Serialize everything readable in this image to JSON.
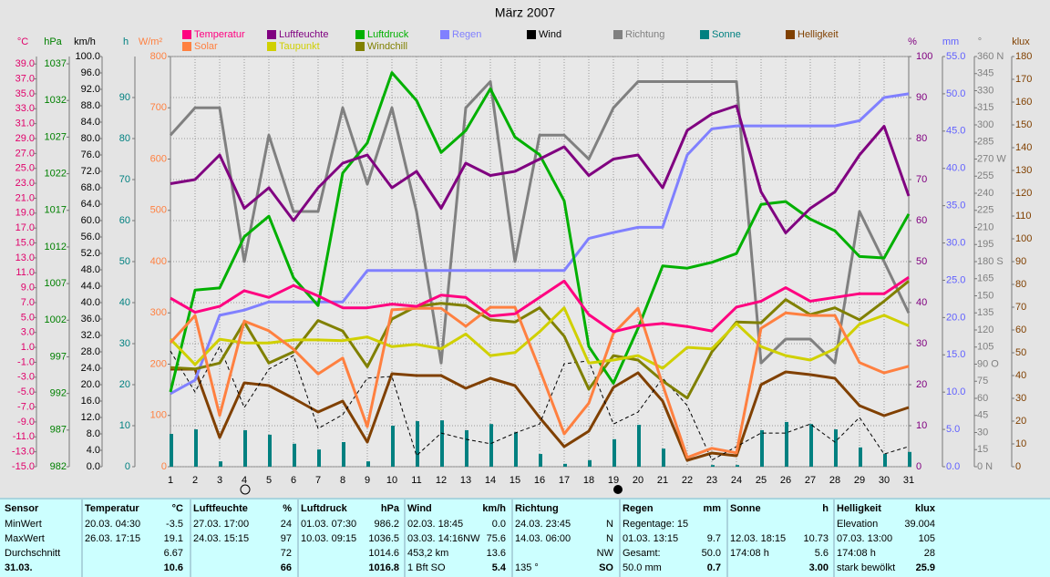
{
  "chart_data": {
    "type": "line",
    "title": "März 2007",
    "categories": [
      "1",
      "2",
      "3",
      "4",
      "5",
      "6",
      "7",
      "8",
      "9",
      "10",
      "11",
      "12",
      "13",
      "14",
      "15",
      "16",
      "17",
      "18",
      "19",
      "20",
      "21",
      "22",
      "23",
      "24",
      "25",
      "26",
      "27",
      "28",
      "29",
      "30",
      "31"
    ],
    "grid": true,
    "axes": [
      {
        "label": "°C",
        "side": "left",
        "color": "#e0006a",
        "lim": [
          -15,
          40
        ],
        "ticks": [
          {
            "value": -15,
            "label": "-15.0"
          },
          {
            "value": -13,
            "label": "-13.0"
          },
          {
            "value": -11,
            "label": "-11.0"
          },
          {
            "value": -9,
            "label": "-9.0"
          },
          {
            "value": -7,
            "label": "-7.0"
          },
          {
            "value": -5,
            "label": "-5.0"
          },
          {
            "value": -3,
            "label": "-3.0"
          },
          {
            "value": -1,
            "label": "-1.0"
          },
          {
            "value": 1,
            "label": "1.0"
          },
          {
            "value": 3,
            "label": "3.0"
          },
          {
            "value": 5,
            "label": "5.0"
          },
          {
            "value": 7,
            "label": "7.0"
          },
          {
            "value": 9,
            "label": "9.0"
          },
          {
            "value": 11,
            "label": "11.0"
          },
          {
            "value": 13,
            "label": "13.0"
          },
          {
            "value": 15,
            "label": "15.0"
          },
          {
            "value": 17,
            "label": "17.0"
          },
          {
            "value": 19,
            "label": "19.0"
          },
          {
            "value": 21,
            "label": "21.0"
          },
          {
            "value": 23,
            "label": "23.0"
          },
          {
            "value": 25,
            "label": "25.0"
          },
          {
            "value": 27,
            "label": "27.0"
          },
          {
            "value": 29,
            "label": "29.0"
          },
          {
            "value": 31,
            "label": "31.0"
          },
          {
            "value": 33,
            "label": "33.0"
          },
          {
            "value": 35,
            "label": "35.0"
          },
          {
            "value": 37,
            "label": "37.0"
          },
          {
            "value": 39,
            "label": "39.0"
          }
        ]
      },
      {
        "label": "hPa",
        "side": "left",
        "color": "#008000",
        "lim": [
          982,
          1038
        ],
        "ticks": [
          982,
          987,
          992,
          997,
          1002,
          1007,
          1012,
          1017,
          1022,
          1027,
          1032,
          1037
        ]
      },
      {
        "label": "km/h",
        "side": "left",
        "color": "#000000",
        "lim": [
          0,
          100
        ],
        "ticks": [
          {
            "value": 0,
            "label": "0.0"
          },
          {
            "value": 4,
            "label": "4.0"
          },
          {
            "value": 8,
            "label": "8.0"
          },
          {
            "value": 12,
            "label": "12.0"
          },
          {
            "value": 16,
            "label": "16.0"
          },
          {
            "value": 20,
            "label": "20.0"
          },
          {
            "value": 24,
            "label": "24.0"
          },
          {
            "value": 28,
            "label": "28.0"
          },
          {
            "value": 32,
            "label": "32.0"
          },
          {
            "value": 36,
            "label": "36.0"
          },
          {
            "value": 40,
            "label": "40.0"
          },
          {
            "value": 44,
            "label": "44.0"
          },
          {
            "value": 48,
            "label": "48.0"
          },
          {
            "value": 52,
            "label": "52.0"
          },
          {
            "value": 56,
            "label": "56.0"
          },
          {
            "value": 60,
            "label": "60.0"
          },
          {
            "value": 64,
            "label": "64.0"
          },
          {
            "value": 68,
            "label": "68.0"
          },
          {
            "value": 72,
            "label": "72.0"
          },
          {
            "value": 76,
            "label": "76.0"
          },
          {
            "value": 80,
            "label": "80.0"
          },
          {
            "value": 84,
            "label": "84.0"
          },
          {
            "value": 88,
            "label": "88.0"
          },
          {
            "value": 92,
            "label": "92.0"
          },
          {
            "value": 96,
            "label": "96.0"
          },
          {
            "value": 100,
            "label": "100.0"
          }
        ]
      },
      {
        "label": "h",
        "side": "left",
        "color": "#008080",
        "lim": [
          0,
          100
        ],
        "ticks": [
          0,
          10,
          20,
          30,
          40,
          50,
          60,
          70,
          80,
          90
        ]
      },
      {
        "label": "W/m²",
        "side": "left",
        "color": "#ff8040",
        "lim": [
          0,
          800
        ],
        "ticks": [
          0,
          100,
          200,
          300,
          400,
          500,
          600,
          700,
          800
        ]
      },
      {
        "label": "%",
        "side": "right",
        "color": "#800080",
        "lim": [
          0,
          100
        ],
        "ticks": [
          0,
          10,
          20,
          30,
          40,
          50,
          60,
          70,
          80,
          90,
          100
        ]
      },
      {
        "label": "mm",
        "side": "right",
        "color": "#6060ff",
        "lim": [
          0,
          55
        ],
        "ticks": [
          {
            "value": 0,
            "label": "0.0"
          },
          {
            "value": 5,
            "label": "5.0"
          },
          {
            "value": 10,
            "label": "10.0"
          },
          {
            "value": 15,
            "label": "15.0"
          },
          {
            "value": 20,
            "label": "20.0"
          },
          {
            "value": 25,
            "label": "25.0"
          },
          {
            "value": 30,
            "label": "30.0"
          },
          {
            "value": 35,
            "label": "35.0"
          },
          {
            "value": 40,
            "label": "40.0"
          },
          {
            "value": 45,
            "label": "45.0"
          },
          {
            "value": 50,
            "label": "50.0"
          },
          {
            "value": 55,
            "label": "55.0"
          }
        ]
      },
      {
        "label": "°",
        "side": "right",
        "color": "#808080",
        "lim": [
          0,
          360
        ],
        "ticks": [
          {
            "value": 0,
            "label": "0 N"
          },
          15,
          30,
          45,
          60,
          75,
          {
            "value": 90,
            "label": "90 O"
          },
          105,
          120,
          135,
          150,
          165,
          {
            "value": 180,
            "label": "180 S"
          },
          195,
          210,
          225,
          240,
          255,
          {
            "value": 270,
            "label": "270 W"
          },
          285,
          300,
          315,
          330,
          345,
          {
            "value": 360,
            "label": "360 N"
          }
        ]
      },
      {
        "label": "klux",
        "side": "right",
        "color": "#804000",
        "lim": [
          0,
          180
        ],
        "ticks": [
          0,
          10,
          20,
          30,
          40,
          50,
          60,
          70,
          80,
          90,
          100,
          110,
          120,
          130,
          140,
          150,
          160,
          170,
          180
        ]
      }
    ],
    "series": [
      {
        "name": "Temperatur",
        "color": "#ff0080",
        "axis": "°C",
        "values": [
          7.6,
          5.7,
          6.5,
          8.6,
          7.7,
          9.3,
          7.9,
          6.3,
          6.3,
          6.8,
          6.5,
          8.0,
          7.7,
          5.2,
          5.5,
          7.7,
          9.9,
          5.4,
          3.1,
          3.9,
          4.2,
          3.8,
          3.2,
          6.4,
          7.2,
          9.0,
          7.2,
          7.7,
          8.2,
          8.2,
          10.4
        ]
      },
      {
        "name": "Solar",
        "color": "#ff8040",
        "axis": "W/m²",
        "values": [
          242,
          295,
          100,
          284,
          265,
          229,
          181,
          212,
          78,
          306,
          309,
          309,
          274,
          311,
          311,
          190,
          64,
          124,
          260,
          309,
          160,
          18,
          36,
          27,
          270,
          300,
          295,
          295,
          203,
          183,
          196
        ]
      },
      {
        "name": "Luftfeuchte",
        "color": "#800080",
        "axis": "%",
        "values": [
          69,
          70,
          76,
          63,
          68,
          60,
          68,
          74,
          76,
          68,
          72,
          63,
          74,
          71,
          72,
          75,
          78,
          71,
          75,
          76,
          68,
          82,
          86,
          88,
          67,
          57,
          63,
          67,
          76,
          83,
          66
        ]
      },
      {
        "name": "Taupunkt",
        "color": "#d0d000",
        "axis": "°C",
        "values": [
          2.1,
          -1.3,
          2.1,
          1.6,
          1.6,
          2.0,
          2.0,
          1.9,
          2.4,
          1.1,
          1.4,
          0.8,
          2.8,
          -0.1,
          0.3,
          3.1,
          6.3,
          -1.1,
          -0.7,
          -0.1,
          -1.8,
          1.0,
          0.8,
          4.2,
          1.1,
          -0.1,
          -0.7,
          0.8,
          4.1,
          5.3,
          3.9
        ]
      },
      {
        "name": "Luftdruck",
        "color": "#00b000",
        "axis": "hPa",
        "values": [
          992.2,
          1006.1,
          1006.4,
          1013.4,
          1016.2,
          1007.8,
          1004.0,
          1022.1,
          1026.2,
          1035.8,
          1032.0,
          1024.9,
          1027.9,
          1033.6,
          1027.0,
          1024.6,
          1018.3,
          998.4,
          993.4,
          1000.9,
          1009.4,
          1009.1,
          1009.9,
          1011.1,
          1017.8,
          1018.2,
          1015.8,
          1014.2,
          1010.7,
          1010.5,
          1016.5
        ]
      },
      {
        "name": "Windchill",
        "color": "#808000",
        "axis": "°C",
        "values": [
          -1.7,
          -1.9,
          -1.1,
          4.4,
          -1.1,
          0.4,
          4.6,
          3.2,
          -1.6,
          4.8,
          6.5,
          6.9,
          6.6,
          4.7,
          4.4,
          6.3,
          2.5,
          -4.6,
          -0.1,
          -0.7,
          -3.5,
          -5.8,
          0.4,
          4.4,
          4.3,
          7.4,
          5.4,
          6.3,
          4.7,
          7.2,
          9.9
        ]
      },
      {
        "name": "Regen",
        "color": "#8080ff",
        "axis": "mm",
        "values": [
          9.8,
          11.6,
          20.3,
          21.0,
          22.1,
          22.1,
          22.1,
          22.1,
          26.3,
          26.3,
          26.3,
          26.3,
          26.3,
          26.3,
          26.3,
          26.3,
          26.3,
          30.6,
          31.4,
          32.1,
          32.1,
          41.8,
          45.3,
          45.7,
          45.7,
          45.7,
          45.7,
          45.7,
          46.4,
          49.5,
          50.0
        ]
      },
      {
        "name": "Wind",
        "color": "#000000",
        "axis": "km/h",
        "dashed": true,
        "values": [
          28.2,
          18.2,
          29.3,
          14.4,
          23.8,
          27.1,
          9.3,
          12.7,
          21.6,
          22.0,
          2.7,
          8.2,
          6.7,
          5.6,
          8.2,
          10.4,
          25.1,
          25.8,
          10.4,
          13.3,
          21.6,
          14.9,
          1.6,
          4.9,
          8.2,
          8.2,
          10.4,
          6.0,
          12.0,
          3.1,
          4.9
        ]
      },
      {
        "name": "Richtung",
        "color": "#808080",
        "axis": "°",
        "values": [
          291,
          315,
          315,
          180,
          291,
          224,
          224,
          315,
          248,
          315,
          224,
          91,
          315,
          338,
          180,
          291,
          291,
          270,
          315,
          338,
          338,
          338,
          338,
          338,
          91,
          112,
          112,
          91,
          224,
          180,
          135
        ]
      },
      {
        "name": "Sonne",
        "color": "#008080",
        "axis": "h",
        "mark": "bar",
        "values": [
          8.0,
          9.1,
          1.3,
          8.9,
          7.8,
          5.6,
          4.2,
          6.0,
          1.3,
          10.0,
          11.1,
          11.3,
          8.9,
          10.4,
          8.4,
          3.1,
          0.7,
          1.6,
          6.7,
          10.2,
          4.4,
          0,
          0.4,
          0.4,
          8.9,
          10.9,
          10.4,
          9.1,
          4.7,
          3.1,
          3.6
        ]
      },
      {
        "name": "Helligkeit",
        "color": "#804000",
        "axis": "klux",
        "values": [
          42.8,
          42.8,
          12.8,
          36.8,
          35.6,
          30.0,
          24.0,
          28.8,
          10.8,
          40.8,
          40.0,
          40.0,
          34.4,
          38.8,
          35.6,
          21.6,
          8.8,
          15.6,
          34.8,
          41.2,
          28.8,
          2.8,
          6.0,
          4.8,
          36.0,
          41.6,
          40.4,
          38.8,
          26.8,
          22.4,
          26.0
        ]
      }
    ]
  },
  "table": {
    "columns": [
      {
        "header": "Sensor",
        "rows": [
          {
            "left": "MinWert"
          },
          {
            "left": "MaxWert"
          },
          {
            "left": "Durchschnitt"
          },
          {
            "left": "31.03."
          }
        ]
      },
      {
        "header": "Temperatur",
        "unit": "°C",
        "rows": [
          {
            "left": "20.03. 04:30",
            "right": "-3.5"
          },
          {
            "left": "26.03. 17:15",
            "right": "19.1"
          },
          {
            "right": "6.67"
          },
          {
            "right": "10.6"
          }
        ]
      },
      {
        "header": "Luftfeuchte",
        "unit": "%",
        "rows": [
          {
            "left": "27.03. 17:00",
            "right": "24"
          },
          {
            "left": "24.03. 15:15",
            "right": "97"
          },
          {
            "right": "72"
          },
          {
            "right": "66"
          }
        ]
      },
      {
        "header": "Luftdruck",
        "unit": "hPa",
        "rows": [
          {
            "left": "01.03. 07:30",
            "right": "986.2"
          },
          {
            "left": "10.03. 09:15",
            "right": "1036.5"
          },
          {
            "right": "1014.6"
          },
          {
            "right": "1016.8"
          }
        ]
      },
      {
        "header": "Wind",
        "unit": "km/h",
        "rows": [
          {
            "left": "02.03. 18:45",
            "right": "0.0"
          },
          {
            "left": "03.03. 14:16NW",
            "right": "75.6"
          },
          {
            "left": "453,2 km",
            "right": "13.6"
          },
          {
            "left": "1 Bft SO",
            "right": "5.4"
          }
        ]
      },
      {
        "header": "Richtung",
        "rows": [
          {
            "left": "24.03. 23:45",
            "right": "N"
          },
          {
            "left": "14.03. 06:00",
            "right": "N"
          },
          {
            "right": "NW"
          },
          {
            "left": "135 °",
            "right": "SO"
          }
        ]
      },
      {
        "header": "Regen",
        "unit": "mm",
        "rows": [
          {
            "left": "Regentage: 15"
          },
          {
            "left": "01.03. 13:15",
            "right": "9.7"
          },
          {
            "left": "Gesamt:",
            "right": "50.0"
          },
          {
            "left": "50.0 mm",
            "right": "0.7"
          }
        ]
      },
      {
        "header": "Sonne",
        "unit": "h",
        "rows": [
          {},
          {
            "left": "12.03. 18:15",
            "right": "10.73"
          },
          {
            "left": "174:08 h",
            "right": "5.6"
          },
          {
            "right": "3.00"
          }
        ]
      },
      {
        "header": "Helligkeit",
        "unit": "klux",
        "rows": [
          {
            "left": "Elevation",
            "right": "39.004"
          },
          {
            "left": "07.03. 13:00",
            "right": "105"
          },
          {
            "left": "174:08 h",
            "right": "28"
          },
          {
            "left": "stark bewölkt",
            "right": "25.9"
          }
        ]
      }
    ]
  }
}
